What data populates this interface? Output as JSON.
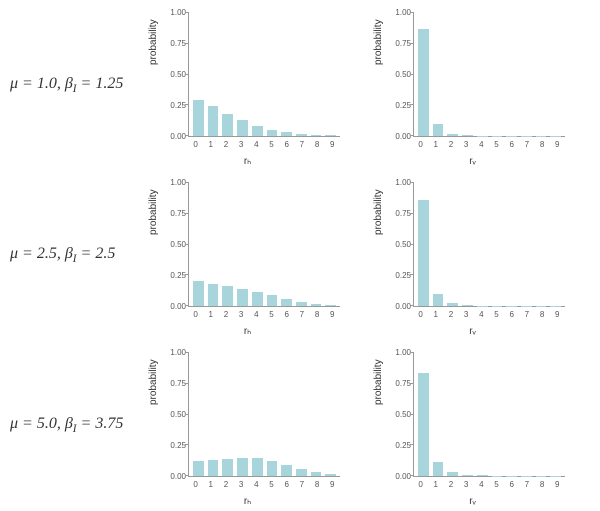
{
  "background_color": "#ffffff",
  "bar_color": "#a8d5dc",
  "axis_color": "#999999",
  "text_color": "#333333",
  "label_fontsize": 10,
  "tick_fontsize": 8,
  "row_label_fontsize": 16,
  "ylim": [
    0,
    1.0
  ],
  "yticks": [
    0.0,
    0.25,
    0.5,
    0.75,
    1.0
  ],
  "ytick_labels": [
    "0.00",
    "0.25",
    "0.50",
    "0.75",
    "1.00"
  ],
  "xticks": [
    0,
    1,
    2,
    3,
    4,
    5,
    6,
    7,
    8,
    9
  ],
  "ylabel": "probability",
  "rows": [
    {
      "label_mu": "μ = 1.0",
      "label_beta": "βᵢ = 1.25",
      "left": {
        "xlabel": "rₕ",
        "values": [
          0.29,
          0.24,
          0.18,
          0.13,
          0.08,
          0.05,
          0.03,
          0.015,
          0.01,
          0.005
        ]
      },
      "right": {
        "xlabel": "rᵥ",
        "values": [
          0.87,
          0.1,
          0.02,
          0.005,
          0.003,
          0.002,
          0.001,
          0.001,
          0.001,
          0.001
        ]
      }
    },
    {
      "label_mu": "μ = 2.5",
      "label_beta": "βᵢ = 2.5",
      "left": {
        "xlabel": "rₕ",
        "values": [
          0.2,
          0.18,
          0.16,
          0.14,
          0.11,
          0.09,
          0.06,
          0.035,
          0.02,
          0.01
        ]
      },
      "right": {
        "xlabel": "rᵥ",
        "values": [
          0.86,
          0.1,
          0.025,
          0.01,
          0.003,
          0.002,
          0.001,
          0.001,
          0.001,
          0.001
        ]
      }
    },
    {
      "label_mu": "μ = 5.0",
      "label_beta": "βᵢ = 3.75",
      "left": {
        "xlabel": "rₕ",
        "values": [
          0.12,
          0.13,
          0.14,
          0.145,
          0.145,
          0.12,
          0.09,
          0.06,
          0.03,
          0.015
        ]
      },
      "right": {
        "xlabel": "rᵥ",
        "values": [
          0.84,
          0.11,
          0.03,
          0.012,
          0.005,
          0.003,
          0.002,
          0.001,
          0.001,
          0.001
        ]
      }
    }
  ]
}
